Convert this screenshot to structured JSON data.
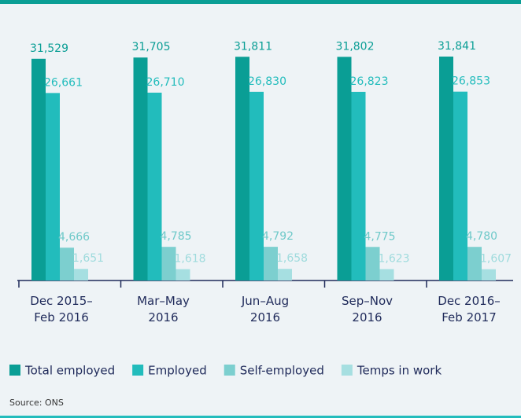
{
  "chart_data": {
    "type": "bar",
    "categories": [
      "Dec 2015–\nFeb 2016",
      "Mar–May\n2016",
      "Jun–Aug\n2016",
      "Sep–Nov\n2016",
      "Dec 2016–\nFeb 2017"
    ],
    "series": [
      {
        "name": "Total employed",
        "color": "#0a9e95",
        "values": [
          31529,
          31705,
          31811,
          31802,
          31841
        ],
        "value_labels": [
          "31,529",
          "31,705",
          "31,811",
          "31,802",
          "31,841"
        ]
      },
      {
        "name": "Employed",
        "color": "#22bcbc",
        "values": [
          26661,
          26710,
          26830,
          26823,
          26853
        ],
        "value_labels": [
          "26,661",
          "26,710",
          "26,830",
          "26,823",
          "26,853"
        ]
      },
      {
        "name": "Self-employed",
        "color": "#7ccfcf",
        "values": [
          4666,
          4785,
          4792,
          4775,
          4780
        ],
        "value_labels": [
          "4,666",
          "4,785",
          "4,792",
          "4,775",
          "4,780"
        ]
      },
      {
        "name": "Temps in work",
        "color": "#a6dfe1",
        "values": [
          1651,
          1618,
          1658,
          1623,
          1607
        ],
        "value_labels": [
          "1,651",
          "1,618",
          "1,658",
          "1,623",
          "1,607"
        ]
      }
    ],
    "source": "Source: ONS"
  }
}
